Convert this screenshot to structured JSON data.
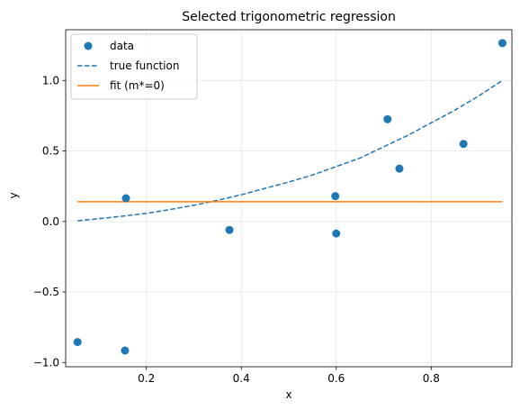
{
  "chart_data": {
    "type": "scatter",
    "title": "Selected trigonometric regression",
    "xlabel": "x",
    "ylabel": "y",
    "xlim": [
      0.03,
      0.97
    ],
    "ylim": [
      -1.03,
      1.36
    ],
    "xticks": [
      0.2,
      0.4,
      0.6,
      0.8
    ],
    "xtick_labels": [
      "0.2",
      "0.4",
      "0.6",
      "0.8"
    ],
    "yticks": [
      -1.0,
      -0.5,
      0.0,
      0.5,
      1.0
    ],
    "ytick_labels": [
      "−1.0",
      "−0.5",
      "0.0",
      "0.5",
      "1.0"
    ],
    "grid": true,
    "legend_position": "top-left",
    "series": [
      {
        "name": "data",
        "kind": "scatter",
        "color": "#1f77b4",
        "x": [
          0.055,
          0.155,
          0.157,
          0.375,
          0.598,
          0.6,
          0.708,
          0.733,
          0.868,
          0.95
        ],
        "y": [
          -0.855,
          -0.915,
          0.165,
          -0.06,
          0.18,
          -0.085,
          0.725,
          0.375,
          0.55,
          1.265
        ]
      },
      {
        "name": "true function",
        "kind": "line",
        "style": "dashed",
        "color": "#1f77b4",
        "x": [
          0.055,
          0.1,
          0.15,
          0.2,
          0.25,
          0.3,
          0.35,
          0.4,
          0.45,
          0.5,
          0.55,
          0.6,
          0.65,
          0.7,
          0.75,
          0.8,
          0.85,
          0.9,
          0.95
        ],
        "y": [
          0.005,
          0.02,
          0.038,
          0.058,
          0.085,
          0.115,
          0.15,
          0.19,
          0.235,
          0.28,
          0.33,
          0.39,
          0.45,
          0.53,
          0.61,
          0.7,
          0.79,
          0.89,
          1.0
        ]
      },
      {
        "name": "fit (m*=0)",
        "kind": "line",
        "style": "solid",
        "color": "#ff7f0e",
        "x": [
          0.055,
          0.95
        ],
        "y": [
          0.14,
          0.14
        ]
      }
    ]
  }
}
